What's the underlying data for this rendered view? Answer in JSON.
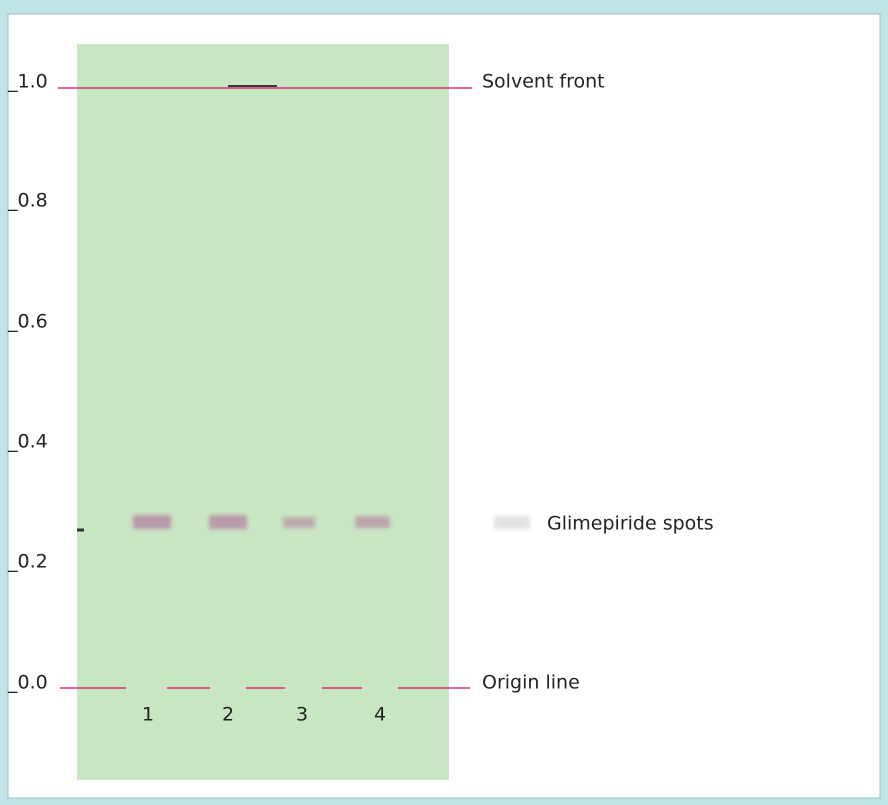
{
  "scale": {
    "labels": [
      "_1.0",
      "_0.8",
      "_0.6",
      "_0.4",
      "_0.2",
      "_0.0"
    ]
  },
  "labels": {
    "solvent_front": "Solvent front",
    "spots": "Glimepiride spots",
    "origin_line": "Origin line"
  },
  "lanes": [
    "1",
    "2",
    "3",
    "4"
  ]
}
